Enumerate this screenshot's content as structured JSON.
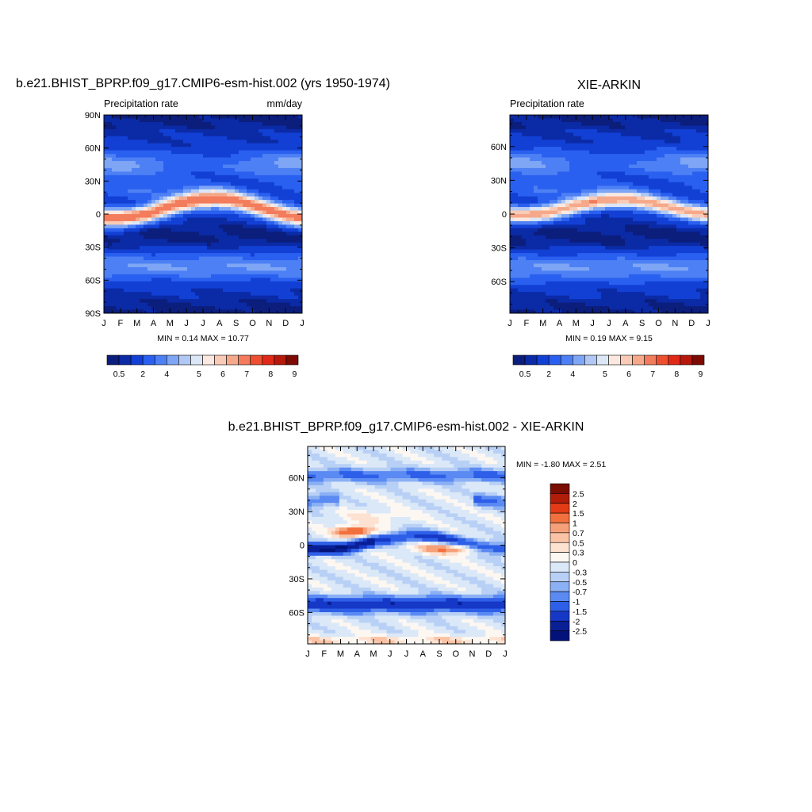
{
  "chart_data": [
    {
      "type": "heatmap",
      "title": "b.e21.BHIST_BPRP.f09_g17.CMIP6-esm-hist.002 (yrs 1950-1974)",
      "left_string": "Precipitation rate",
      "right_string": "mm/day",
      "x_ticks": [
        "J",
        "F",
        "M",
        "A",
        "M",
        "J",
        "J",
        "A",
        "S",
        "O",
        "N",
        "D",
        "J"
      ],
      "y_ticks": [
        "90N",
        "60N",
        "30N",
        "0",
        "30S",
        "60S",
        "90S"
      ],
      "stats_text": "MIN =   0.14 MAX =  10.77",
      "min": 0.14,
      "max": 10.77,
      "colorbar_labels": [
        "0.5",
        "2",
        "4",
        "5",
        "6",
        "7",
        "8",
        "9"
      ],
      "levels": [
        0.5,
        1,
        2,
        3,
        4,
        5,
        6,
        7,
        8,
        9,
        10,
        12,
        13,
        14,
        15,
        16
      ],
      "field": {
        "itcz_amp": 10,
        "itcz_center_lat": 5,
        "itcz_seasonal_shift": 9,
        "itcz_width": 8
      }
    },
    {
      "type": "heatmap",
      "title": "XIE-ARKIN",
      "left_string": "Precipitation rate",
      "right_string": "",
      "x_ticks": [
        "J",
        "F",
        "M",
        "A",
        "M",
        "J",
        "J",
        "A",
        "S",
        "O",
        "N",
        "D",
        "J"
      ],
      "y_ticks": [
        "60N",
        "30N",
        "0",
        "30S",
        "60S"
      ],
      "stats_text": "MIN =   0.19 MAX =   9.15",
      "min": 0.19,
      "max": 9.15,
      "colorbar_labels": [
        "0.5",
        "2",
        "4",
        "5",
        "6",
        "7",
        "8",
        "9"
      ],
      "levels": [
        0.5,
        1,
        2,
        3,
        4,
        5,
        6,
        7,
        8,
        9,
        10,
        12,
        13,
        14,
        15,
        16
      ],
      "field": {
        "itcz_amp": 8.5,
        "itcz_center_lat": 6,
        "itcz_seasonal_shift": 7,
        "itcz_width": 7
      }
    },
    {
      "type": "heatmap",
      "title": "b.e21.BHIST_BPRP.f09_g17.CMIP6-esm-hist.002 - XIE-ARKIN",
      "left_string": "",
      "right_string": "",
      "x_ticks": [
        "J",
        "F",
        "M",
        "A",
        "M",
        "J",
        "J",
        "A",
        "S",
        "O",
        "N",
        "D",
        "J"
      ],
      "y_ticks": [
        "60N",
        "30N",
        "0",
        "30S",
        "60S"
      ],
      "stats_text": "MIN =  -1.80 MAX =   2.51",
      "min": -1.8,
      "max": 2.51,
      "colorbar_labels": [
        "2.5",
        "2",
        "1.5",
        "1",
        "0.7",
        "0.5",
        "0.3",
        "0",
        "-0.3",
        "-0.5",
        "-0.7",
        "-1",
        "-1.5",
        "-2",
        "-2.5"
      ],
      "levels": [
        -2.5,
        -2,
        -1.5,
        -1,
        -0.7,
        -0.5,
        -0.3,
        0,
        0.3,
        0.5,
        0.7,
        1,
        1.5,
        2,
        2.5
      ]
    }
  ],
  "palettes": {
    "precip": [
      "#0c1e7c",
      "#0b2aa6",
      "#1240d4",
      "#2a60ef",
      "#4d80f4",
      "#7ea6f5",
      "#b0c8f3",
      "#dbe7f7",
      "#fbe9e0",
      "#f9cbb6",
      "#f6a98a",
      "#f27c5c",
      "#ed4f2f",
      "#e02916",
      "#b6180c",
      "#7d0a03"
    ],
    "diff": [
      "#7a0e03",
      "#b01d08",
      "#e23b16",
      "#f2703e",
      "#f6a079",
      "#fac3a5",
      "#fde2d2",
      "#fdf7f2",
      "#dbe8f8",
      "#b8d0f5",
      "#8bb0f4",
      "#5b8af3",
      "#2e5fe8",
      "#1638c7",
      "#0a1f96",
      "#03127a"
    ]
  }
}
